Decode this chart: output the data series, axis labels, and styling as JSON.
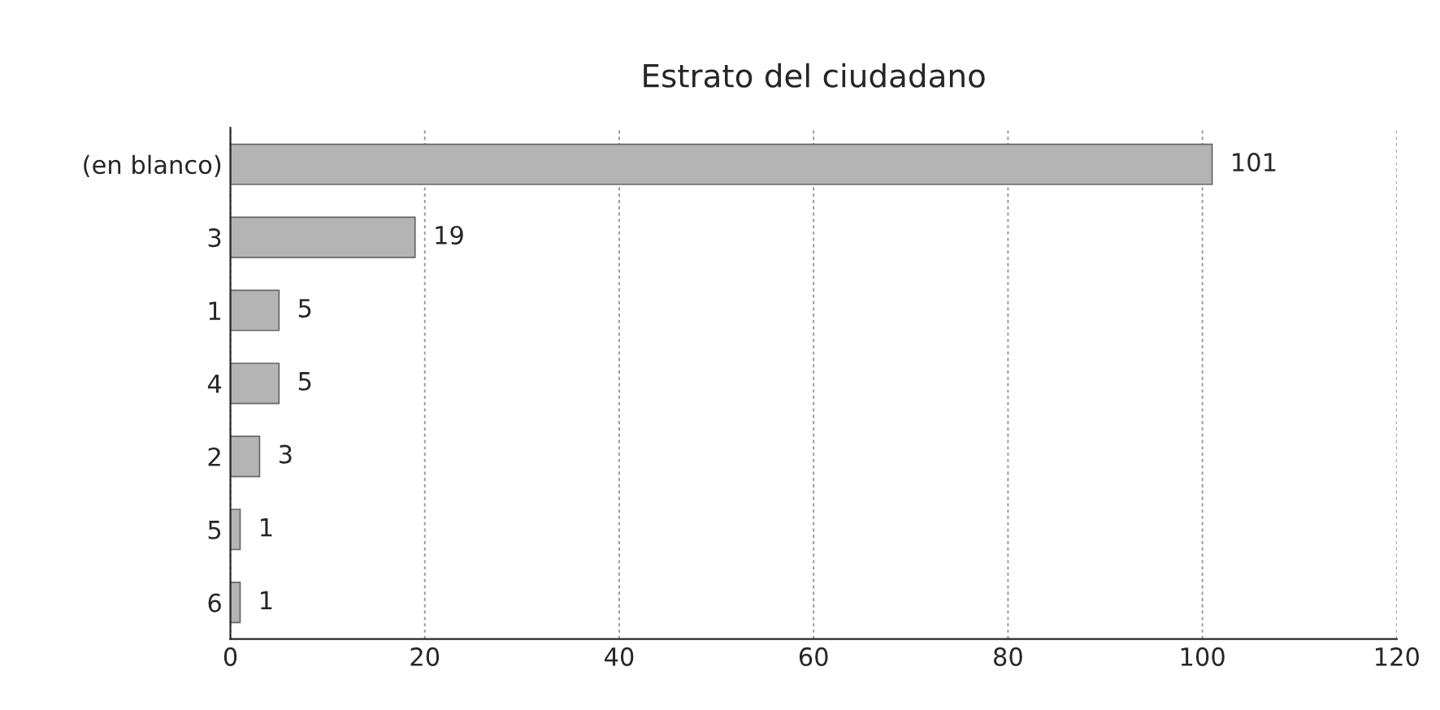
{
  "chart_data": {
    "type": "bar",
    "orientation": "horizontal",
    "title": "Estrato del ciudadano",
    "categories": [
      "(en blanco)",
      "3",
      "1",
      "4",
      "2",
      "5",
      "6"
    ],
    "values": [
      101,
      19,
      5,
      5,
      3,
      1,
      1
    ],
    "color": "#b4b4b4",
    "xlim": [
      0,
      120
    ],
    "xticks": [
      0,
      20,
      40,
      60,
      80,
      100,
      120
    ],
    "grid": "x",
    "data_labels": true
  }
}
